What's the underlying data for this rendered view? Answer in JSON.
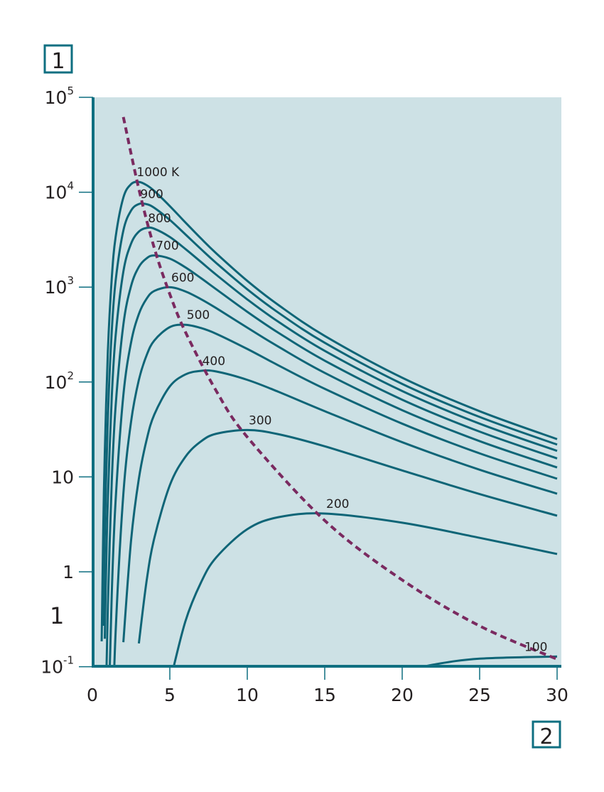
{
  "chart_data": {
    "type": "line",
    "title": "",
    "xlabel": "",
    "ylabel": "",
    "xlim": [
      0,
      30
    ],
    "ylim": [
      0.1,
      100000
    ],
    "y_scale": "log",
    "grid": false,
    "legend": "none",
    "x_ticks": [
      "0",
      "5",
      "10",
      "15",
      "20",
      "25",
      "30"
    ],
    "x_tick_values": [
      0,
      5,
      10,
      15,
      20,
      25,
      30
    ],
    "y_ticks": [
      {
        "base": "10",
        "exp": "5",
        "value": 100000
      },
      {
        "base": "10",
        "exp": "4",
        "value": 10000
      },
      {
        "base": "10",
        "exp": "3",
        "value": 1000
      },
      {
        "base": "10",
        "exp": "2",
        "value": 100
      },
      {
        "base": "10",
        "exp": "",
        "value": 10
      },
      {
        "base": "1",
        "exp": "",
        "value": 1
      },
      {
        "base": "10",
        "exp": "-1",
        "value": 0.1
      }
    ],
    "extra_axis_label": "1",
    "callout_y": "1",
    "callout_x": "2",
    "colors": {
      "plot_bg": "#cde1e5",
      "curve": "#0f6577",
      "axis": "#0f6f81",
      "wien": "#7a2a60",
      "callout_border": "#0f6f81"
    },
    "series": [
      {
        "name": "1000 K",
        "x": [
          0.6,
          0.7,
          0.8,
          1,
          1.25,
          1.5,
          2,
          2.5,
          3,
          3.5,
          4,
          5,
          6,
          7,
          8,
          10,
          12,
          15,
          20,
          25,
          30
        ],
        "y": [
          0.185,
          2.65,
          17.6,
          211,
          1230,
          3363,
          8785,
          12164,
          12832,
          11875,
          10293,
          7136,
          4812,
          3269,
          2266,
          1163,
          649,
          306,
          111,
          49.2,
          25.0
        ]
      },
      {
        "name": "900",
        "x": [
          0.7,
          0.8,
          1,
          1.25,
          1.5,
          2,
          2.5,
          3,
          3.5,
          4,
          5,
          6,
          7,
          8,
          10,
          12,
          15,
          20,
          25,
          30
        ],
        "y": [
          0.27,
          2.39,
          42.7,
          342,
          1159,
          3946,
          6408,
          7511,
          7476,
          6843,
          5102,
          3602,
          2527,
          1793,
          948,
          539,
          259,
          95.5,
          42.8,
          21.9
        ]
      },
      {
        "name": "800",
        "x": [
          0.8,
          0.9,
          1,
          1.25,
          1.5,
          2,
          2.5,
          3,
          3.5,
          4,
          5,
          6,
          7,
          8,
          10,
          12,
          15,
          20,
          25,
          30
        ],
        "y": [
          0.197,
          1.33,
          5.78,
          69.3,
          306,
          1456,
          2878,
          3844,
          4204,
          4120,
          3373,
          2527,
          1848,
          1348,
          742,
          432,
          213,
          80.3,
          36.4,
          18.8
        ]
      },
      {
        "name": "700",
        "x": [
          0.9,
          1,
          1.25,
          1.5,
          2,
          2.5,
          3,
          3.5,
          4,
          5,
          6,
          7,
          8,
          10,
          12,
          15,
          20,
          25,
          30
        ],
        "y": [
          0.076,
          0.443,
          8.88,
          55.4,
          402,
          1030,
          1631,
          2010,
          2157,
          1996,
          1617,
          1247,
          948,
          549,
          331,
          167.8,
          65.1,
          30.0,
          15.65
        ]
      },
      {
        "name": "600",
        "x": [
          1,
          1.25,
          1.5,
          2,
          2.5,
          3,
          3.5,
          4,
          5,
          6,
          7,
          8,
          10,
          12,
          15,
          20,
          25,
          30
        ],
        "y": [
          0.0144,
          0.573,
          5.62,
          72.6,
          262,
          520,
          754,
          912,
          998,
          901,
          748,
          600,
          374,
          236,
          124.8,
          50.5,
          23.8,
          12.58
        ]
      },
      {
        "name": "500",
        "x": [
          1.25,
          1.5,
          2,
          2.5,
          3,
          3.5,
          4,
          5,
          6,
          7,
          8,
          10,
          12,
          15,
          20,
          25,
          30
        ],
        "y": [
          0.0123,
          0.23,
          6.61,
          38.4,
          105,
          191,
          274,
          379,
          401,
          371,
          322,
          223,
          150,
          84.8,
          36.4,
          17.7,
          9.57
        ]
      },
      {
        "name": "400",
        "x": [
          2,
          2.5,
          3,
          3.5,
          4,
          5,
          6,
          7,
          8,
          10,
          12,
          15,
          20,
          25,
          30
        ],
        "y": [
          0.181,
          2.16,
          9.56,
          24.5,
          45.5,
          89.9,
          120,
          131,
          129,
          105.4,
          79.0,
          49.3,
          23.2,
          11.9,
          6.65
        ]
      },
      {
        "name": "300",
        "x": [
          3,
          3.5,
          4,
          5,
          6,
          7,
          8,
          10,
          12,
          15,
          20,
          25,
          30
        ],
        "y": [
          0.176,
          0.8,
          2.27,
          8.17,
          16.25,
          23.6,
          28.5,
          31.2,
          28.2,
          21.0,
          11.7,
          6.59,
          3.9
        ]
      },
      {
        "name": "200",
        "x": [
          5,
          6,
          7,
          8,
          10,
          12,
          15,
          20,
          25,
          30
        ],
        "y": [
          0.0677,
          0.299,
          0.765,
          1.42,
          2.81,
          3.76,
          4.11,
          3.29,
          2.28,
          1.54
        ]
      },
      {
        "name": "100",
        "x": [
          20,
          22,
          25,
          30
        ],
        "y": [
          0.0878,
          0.105,
          0.1216,
          0.128
        ]
      }
    ],
    "wien_line": {
      "style": "dashed",
      "x": [
        2,
        3,
        4,
        5,
        6,
        8,
        10,
        15,
        20,
        25,
        30
      ],
      "y": [
        62000,
        10820,
        2570,
        842,
        338,
        80.4,
        26.3,
        3.47,
        0.82,
        0.269,
        0.12
      ]
    }
  }
}
